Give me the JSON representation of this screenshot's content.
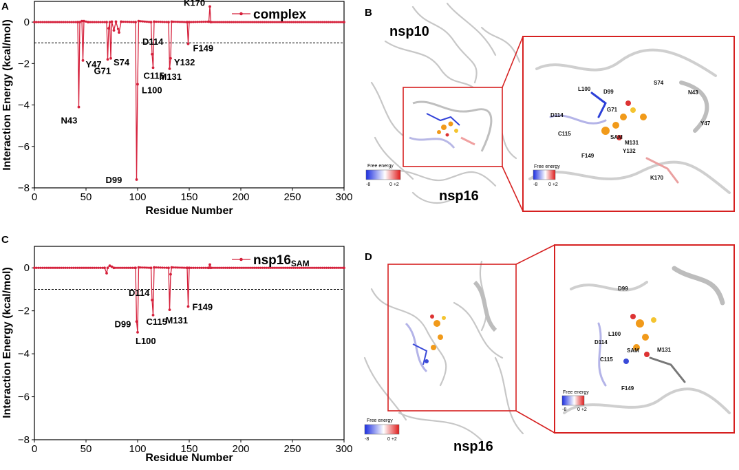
{
  "chart_data": [
    {
      "panel": "A",
      "type": "line",
      "xlabel": "Residue Number",
      "ylabel": "Interaction Energy (kcal/mol)",
      "xlim": [
        0,
        300
      ],
      "ylim": [
        -8,
        1
      ],
      "xticks": [
        "0",
        "50",
        "100",
        "150",
        "200",
        "250",
        "300"
      ],
      "yticks": [
        "0",
        "−2",
        "−4",
        "−6",
        "−8"
      ],
      "reference_line": -1,
      "legend": {
        "position": "top-right"
      },
      "series": [
        {
          "name": "complex",
          "color": "#d5203b",
          "points": [
            [
              0,
              0
            ],
            [
              42,
              0
            ],
            [
              43,
              -4.1
            ],
            [
              44,
              0
            ],
            [
              46,
              0.05
            ],
            [
              47,
              -1.85
            ],
            [
              48,
              0.05
            ],
            [
              52,
              0
            ],
            [
              70,
              0
            ],
            [
              71,
              -1.8
            ],
            [
              72,
              -0.3
            ],
            [
              73,
              0
            ],
            [
              74,
              -1.75
            ],
            [
              75,
              0.02
            ],
            [
              77,
              -0.4
            ],
            [
              79,
              0.02
            ],
            [
              82,
              -0.5
            ],
            [
              84,
              0.02
            ],
            [
              98,
              0
            ],
            [
              99,
              -7.6
            ],
            [
              100,
              -3.0
            ],
            [
              101,
              0.05
            ],
            [
              113,
              0
            ],
            [
              114,
              -1.55
            ],
            [
              115,
              -2.2
            ],
            [
              116,
              0.02
            ],
            [
              130,
              0
            ],
            [
              131,
              -2.25
            ],
            [
              132,
              -1.75
            ],
            [
              133,
              0.02
            ],
            [
              148,
              0
            ],
            [
              149,
              -1.05
            ],
            [
              150,
              0
            ],
            [
              169,
              0.02
            ],
            [
              170,
              0.75
            ],
            [
              171,
              0
            ],
            [
              300,
              0
            ]
          ]
        }
      ],
      "annotations": [
        {
          "text": "N43",
          "x": 43,
          "y": -4.1
        },
        {
          "text": "Y47",
          "x": 47,
          "y": -1.85
        },
        {
          "text": "G71",
          "x": 71,
          "y": -1.8
        },
        {
          "text": "S74",
          "x": 74,
          "y": -1.75
        },
        {
          "text": "D99",
          "x": 99,
          "y": -7.6
        },
        {
          "text": "L100",
          "x": 100,
          "y": -3.0
        },
        {
          "text": "D114",
          "x": 114,
          "y": -1.55
        },
        {
          "text": "C115",
          "x": 115,
          "y": -2.2
        },
        {
          "text": "M131",
          "x": 131,
          "y": -2.25
        },
        {
          "text": "Y132",
          "x": 132,
          "y": -1.75
        },
        {
          "text": "F149",
          "x": 149,
          "y": -1.05
        },
        {
          "text": "K170",
          "x": 170,
          "y": 0.75
        }
      ]
    },
    {
      "panel": "C",
      "type": "line",
      "xlabel": "Residue Number",
      "ylabel": "Interaction Energy (kcal/mol)",
      "xlim": [
        0,
        300
      ],
      "ylim": [
        -8,
        1
      ],
      "xticks": [
        "0",
        "50",
        "100",
        "150",
        "200",
        "250",
        "300"
      ],
      "yticks": [
        "0",
        "−2",
        "−4",
        "−6",
        "−8"
      ],
      "reference_line": -1,
      "legend": {
        "position": "top-right"
      },
      "series": [
        {
          "name": "nsp16",
          "name_sub": "SAM",
          "color": "#d5203b",
          "points": [
            [
              0,
              0
            ],
            [
              68,
              0
            ],
            [
              70,
              -0.25
            ],
            [
              71,
              0
            ],
            [
              73,
              0.1
            ],
            [
              75,
              0.05
            ],
            [
              77,
              0
            ],
            [
              98,
              0
            ],
            [
              99,
              -2.5
            ],
            [
              100,
              -3.0
            ],
            [
              101,
              0.02
            ],
            [
              113,
              0
            ],
            [
              114,
              -1.5
            ],
            [
              115,
              -2.2
            ],
            [
              116,
              0.02
            ],
            [
              130,
              0
            ],
            [
              131,
              -1.95
            ],
            [
              132,
              -0.3
            ],
            [
              133,
              0.02
            ],
            [
              148,
              0
            ],
            [
              149,
              -1.8
            ],
            [
              150,
              0
            ],
            [
              169,
              0
            ],
            [
              170,
              0.15
            ],
            [
              171,
              0
            ],
            [
              300,
              0
            ]
          ]
        }
      ],
      "annotations": [
        {
          "text": "D99",
          "x": 99,
          "y": -2.5
        },
        {
          "text": "L100",
          "x": 100,
          "y": -3.0
        },
        {
          "text": "D114",
          "x": 114,
          "y": -1.5
        },
        {
          "text": "C115",
          "x": 115,
          "y": -2.2
        },
        {
          "text": "M131",
          "x": 131,
          "y": -1.95
        },
        {
          "text": "F149",
          "x": 149,
          "y": -1.8
        }
      ]
    }
  ],
  "panels": {
    "a": {
      "letter": "A"
    },
    "b": {
      "letter": "B",
      "label_nsp10": "nsp10",
      "label_nsp16": "nsp16",
      "colorbar": {
        "title": "Free energy",
        "min": "-8",
        "max": "0 +2"
      },
      "zoom_colorbar": {
        "title": "Free energy",
        "min": "-8",
        "max": "0 +2"
      },
      "residues": [
        "L100",
        "D99",
        "S74",
        "N43",
        "G71",
        "D114",
        "C115",
        "Y47",
        "SAM",
        "M131",
        "Y132",
        "F149",
        "K170"
      ]
    },
    "c": {
      "letter": "C"
    },
    "d": {
      "letter": "D",
      "label_nsp16": "nsp16",
      "colorbar": {
        "title": "Free energy",
        "min": "-8",
        "max": "0 +2"
      },
      "zoom_colorbar": {
        "title": "Free energy",
        "min": "-8",
        "max": "0 +2"
      },
      "residues": [
        "D99",
        "L100",
        "D114",
        "C115",
        "SAM",
        "M131",
        "F149"
      ]
    }
  }
}
